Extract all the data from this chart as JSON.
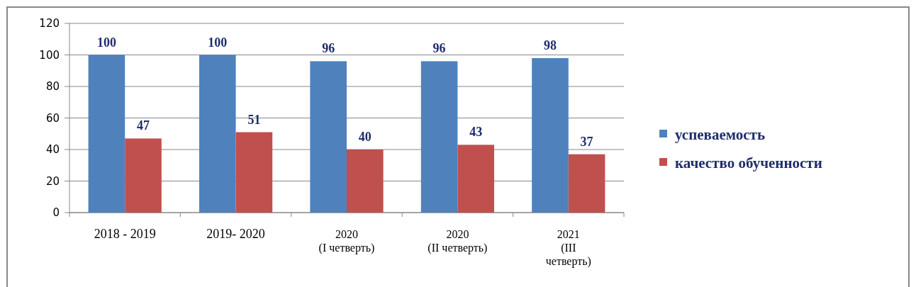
{
  "chart_data": {
    "type": "bar",
    "categories": [
      "2018 - 2019",
      "2019- 2020",
      "2020\n(I четверть)",
      "2020\n(II четверть)",
      "2021\n(III\nчетверть)"
    ],
    "series": [
      {
        "name": "успеваемость",
        "color": "#4f81bd",
        "values": [
          100,
          100,
          96,
          96,
          98
        ]
      },
      {
        "name": "качество обученности",
        "color": "#c0504d",
        "values": [
          47,
          51,
          40,
          43,
          37
        ]
      }
    ],
    "ylim": [
      0,
      120
    ],
    "yticks": [
      0,
      20,
      40,
      60,
      80,
      100,
      120
    ],
    "grid": "y",
    "legend": "right",
    "data_labels": true
  }
}
